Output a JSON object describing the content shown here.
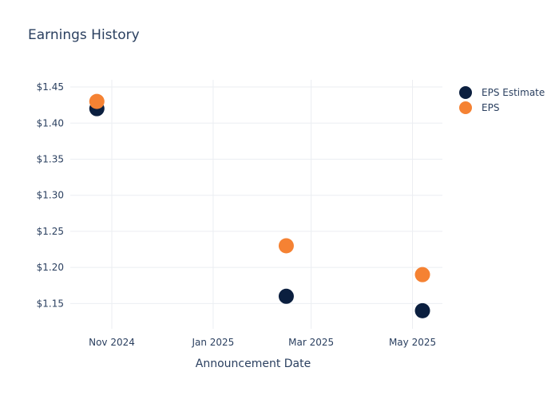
{
  "chart_data": {
    "type": "scatter",
    "title": "Earnings History",
    "xlabel": "Announcement Date",
    "ylabel": "",
    "x_ticks": [
      "Nov 2024",
      "Jan 2025",
      "Mar 2025",
      "May 2025"
    ],
    "y_ticks": [
      "$1.15",
      "$1.20",
      "$1.25",
      "$1.30",
      "$1.35",
      "$1.40",
      "$1.45"
    ],
    "y_tick_values": [
      1.15,
      1.2,
      1.25,
      1.3,
      1.35,
      1.4,
      1.45
    ],
    "ylim": [
      1.115,
      1.46
    ],
    "xlim": [
      "2024-10-07",
      "2025-05-19"
    ],
    "grid": true,
    "legend_position": "top-right",
    "x": [
      "2024-10-23",
      "2025-02-14",
      "2025-05-07"
    ],
    "series": [
      {
        "name": "EPS Estimate",
        "color": "#0b1f3f",
        "values": [
          1.42,
          1.16,
          1.14
        ]
      },
      {
        "name": "EPS",
        "color": "#f58233",
        "values": [
          1.43,
          1.23,
          1.19
        ]
      }
    ]
  },
  "colors": {
    "text": "#2a3f5f",
    "grid": "#ebeef2"
  }
}
